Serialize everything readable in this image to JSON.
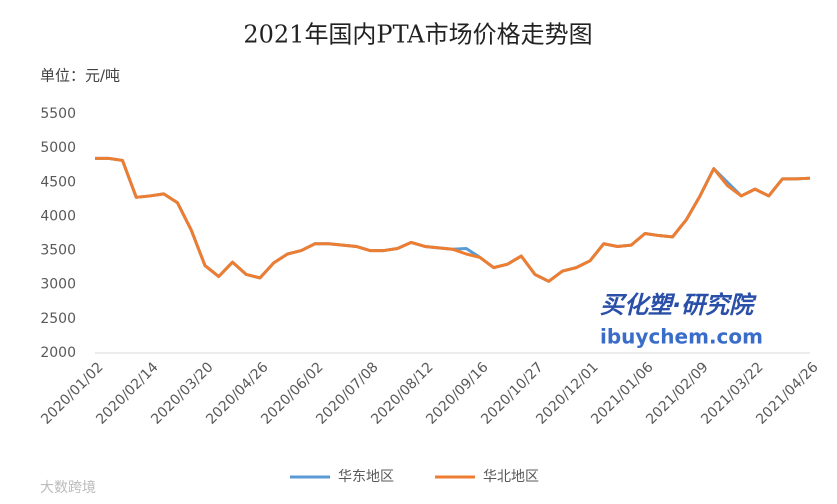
{
  "chart_data": {
    "type": "line",
    "title": "2021年国内PTA市场价格走势图",
    "y_axis_label": "单位：元/吨",
    "categories": [
      "2020/01/02",
      null,
      null,
      null,
      "2020/02/14",
      null,
      null,
      null,
      "2020/03/20",
      null,
      null,
      null,
      "2020/04/26",
      null,
      null,
      null,
      "2020/06/02",
      null,
      null,
      null,
      "2020/07/08",
      null,
      null,
      null,
      "2020/08/12",
      null,
      null,
      null,
      "2020/09/16",
      null,
      null,
      null,
      "2020/10/27",
      null,
      null,
      null,
      "2020/12/01",
      null,
      null,
      null,
      "2021/01/06",
      null,
      null,
      null,
      "2021/02/09",
      null,
      null,
      null,
      "2021/03/22",
      null,
      null,
      null,
      "2021/04/26"
    ],
    "series": [
      {
        "name": "华东地区",
        "color": "#5b9bd5",
        "values": [
          4850,
          4850,
          4820,
          4280,
          4300,
          4330,
          4200,
          3800,
          3280,
          3120,
          3330,
          3150,
          3100,
          3320,
          3450,
          3500,
          3600,
          3600,
          3580,
          3560,
          3500,
          3500,
          3530,
          3620,
          3560,
          3540,
          3520,
          3530,
          3400,
          3250,
          3300,
          3420,
          3150,
          3050,
          3200,
          3250,
          3350,
          3600,
          3560,
          3580,
          3750,
          3720,
          3700,
          3950,
          4300,
          4700,
          4500,
          4300,
          4400,
          4300,
          4550,
          4550,
          4560
        ]
      },
      {
        "name": "华北地区",
        "color": "#ed7d31",
        "values": [
          4850,
          4850,
          4820,
          4280,
          4300,
          4330,
          4200,
          3800,
          3280,
          3120,
          3330,
          3150,
          3100,
          3320,
          3450,
          3500,
          3600,
          3600,
          3580,
          3560,
          3500,
          3500,
          3530,
          3620,
          3560,
          3540,
          3520,
          3450,
          3400,
          3250,
          3300,
          3420,
          3150,
          3050,
          3200,
          3250,
          3350,
          3600,
          3560,
          3580,
          3750,
          3720,
          3700,
          3950,
          4300,
          4700,
          4450,
          4300,
          4400,
          4300,
          4550,
          4550,
          4560
        ]
      }
    ],
    "ylim": [
      2000,
      5500
    ],
    "yticks": [
      2000,
      2500,
      3000,
      3500,
      4000,
      4500,
      5000,
      5500
    ],
    "legend": "bottom",
    "watermarks": [
      "买化塑·研究院",
      "ibuychem.com",
      "大数跨境"
    ]
  }
}
